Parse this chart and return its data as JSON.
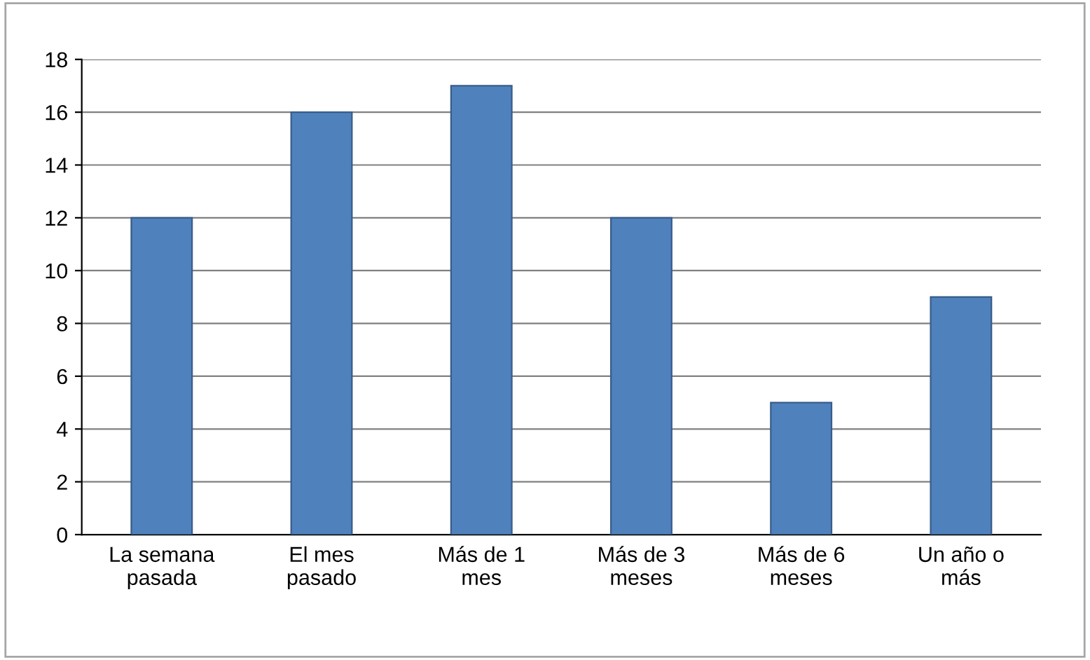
{
  "chart_data": {
    "type": "bar",
    "categories": [
      "La semana\npasada",
      "El mes\npasado",
      "Más de 1\nmes",
      "Más de 3\nmeses",
      "Más de 6\nmeses",
      "Un año o\nmás"
    ],
    "values": [
      12,
      16,
      17,
      12,
      5,
      9
    ],
    "color": "#4f81bd",
    "ylim": [
      0,
      18
    ],
    "yticks": [
      0,
      2,
      4,
      6,
      8,
      10,
      12,
      14,
      16,
      18
    ],
    "grid": "y"
  }
}
